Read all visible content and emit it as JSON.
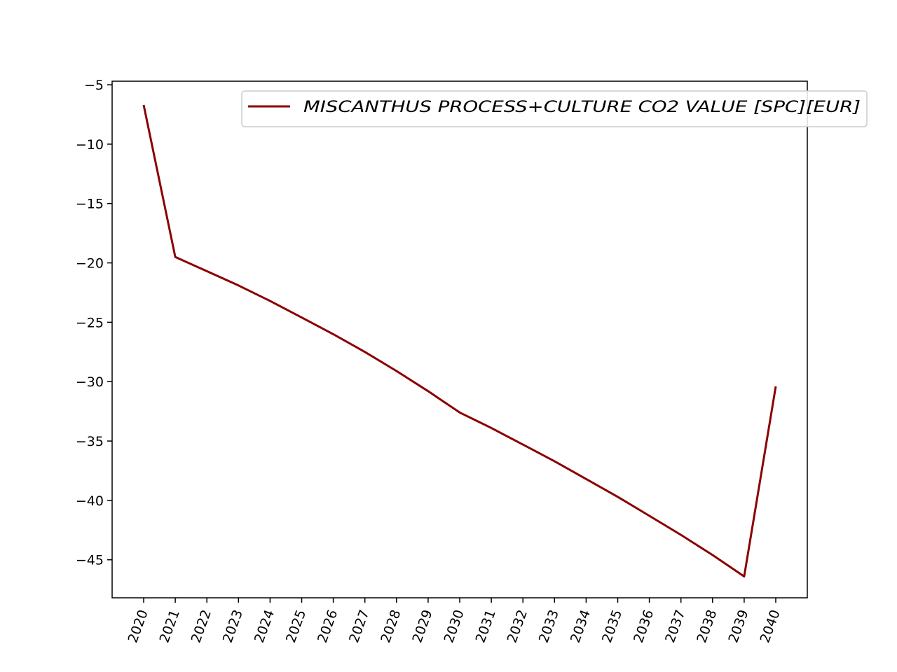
{
  "chart_data": {
    "type": "line",
    "title": "",
    "xlabel": "",
    "ylabel": "",
    "x": [
      "2020",
      "2021",
      "2022",
      "2023",
      "2024",
      "2025",
      "2026",
      "2027",
      "2028",
      "2029",
      "2030",
      "2031",
      "2032",
      "2033",
      "2034",
      "2035",
      "2036",
      "2037",
      "2038",
      "2039",
      "2040"
    ],
    "series": [
      {
        "name": "MISCANTHUS PROCESS+CULTURE CO2 VALUE [SPC][EUR]",
        "color": "#8b0000",
        "values": [
          -6.7,
          -19.5,
          -20.7,
          -21.9,
          -23.2,
          -24.6,
          -26.0,
          -27.5,
          -29.1,
          -30.8,
          -32.6,
          -33.9,
          -35.3,
          -36.7,
          -38.2,
          -39.7,
          -41.3,
          -42.9,
          -44.6,
          -46.4,
          -30.4
        ]
      }
    ],
    "yticks": [
      -45,
      -40,
      -35,
      -30,
      -25,
      -20,
      -15,
      -10,
      -5
    ],
    "ylim": [
      -48.2,
      -4.7
    ],
    "grid": false,
    "legend_position": "top-right"
  }
}
